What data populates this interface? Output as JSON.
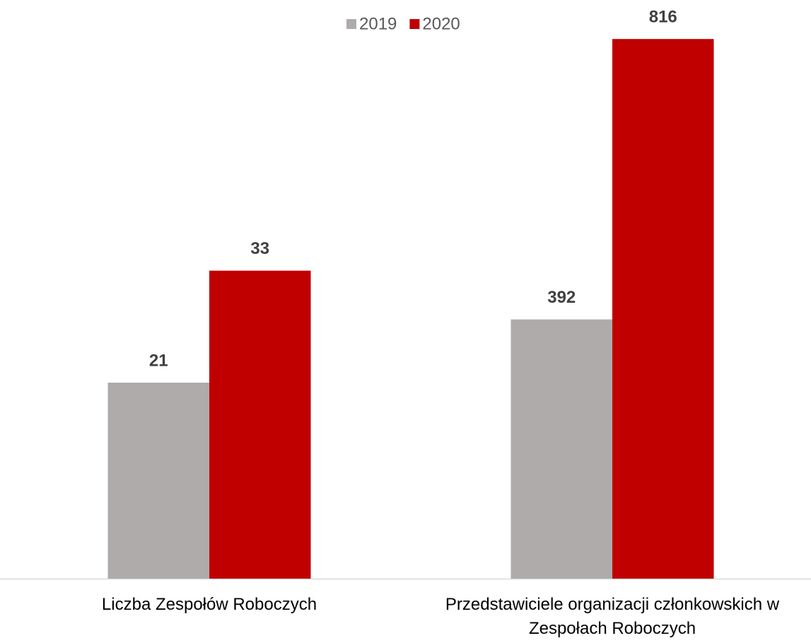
{
  "chart_data": {
    "type": "bar",
    "categories": [
      "Liczba Zespołów Roboczych",
      "Przedstawiciele organizacji członkowskich w Zespołach Roboczych"
    ],
    "series": [
      {
        "name": "2019",
        "color": "#afabab",
        "values": [
          21,
          392
        ]
      },
      {
        "name": "2020",
        "color": "#c00000",
        "values": [
          33,
          816
        ]
      }
    ],
    "category_axis": [
      "y",
      "y2"
    ],
    "ylim": [
      0,
      62
    ],
    "y2lim": [
      0,
      875
    ],
    "legend": "top"
  }
}
